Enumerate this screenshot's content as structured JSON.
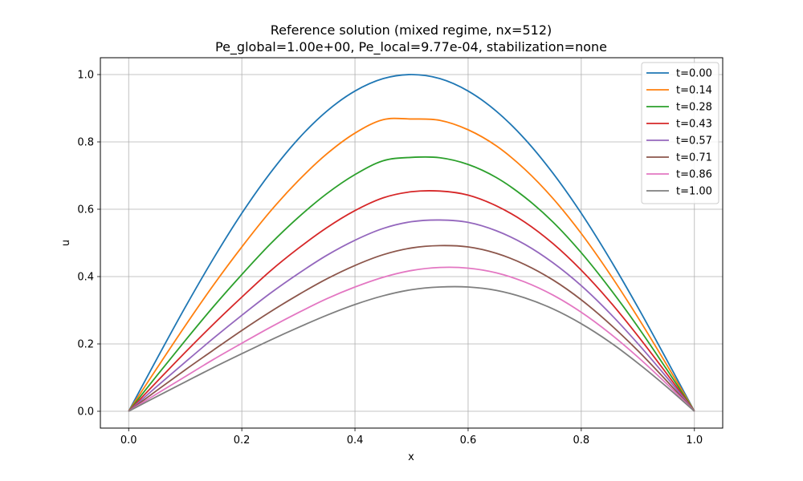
{
  "chart_data": {
    "type": "line",
    "title": "Reference solution (mixed regime, nx=512)",
    "subtitle": "Pe_global=1.00e+00, Pe_local=9.77e-04, stabilization=none",
    "xlabel": "x",
    "ylabel": "u",
    "xlim": [
      -0.05,
      1.05
    ],
    "ylim": [
      -0.05,
      1.05
    ],
    "xticks": [
      0.0,
      0.2,
      0.4,
      0.6,
      0.8,
      1.0
    ],
    "xtick_labels": [
      "0.0",
      "0.2",
      "0.4",
      "0.6",
      "0.8",
      "1.0"
    ],
    "yticks": [
      0.0,
      0.2,
      0.4,
      0.6,
      0.8,
      1.0
    ],
    "ytick_labels": [
      "0.0",
      "0.2",
      "0.4",
      "0.6",
      "0.8",
      "1.0"
    ],
    "grid": true,
    "legend_position": "top-right",
    "x": [
      0.0,
      0.05,
      0.1,
      0.15,
      0.2,
      0.25,
      0.3,
      0.35,
      0.4,
      0.45,
      0.5,
      0.55,
      0.6,
      0.65,
      0.7,
      0.75,
      0.8,
      0.85,
      0.9,
      0.95,
      1.0
    ],
    "series": [
      {
        "name": "t=0.00",
        "color": "#1f77b4",
        "values": [
          0.0,
          0.156,
          0.309,
          0.454,
          0.588,
          0.707,
          0.809,
          0.891,
          0.951,
          0.988,
          1.0,
          0.988,
          0.951,
          0.891,
          0.809,
          0.707,
          0.588,
          0.454,
          0.309,
          0.156,
          0.0
        ]
      },
      {
        "name": "t=0.14",
        "color": "#ff7f0e",
        "values": [
          0.0,
          0.128,
          0.254,
          0.375,
          0.488,
          0.593,
          0.685,
          0.764,
          0.826,
          0.866,
          0.868,
          0.864,
          0.836,
          0.788,
          0.719,
          0.632,
          0.528,
          0.409,
          0.279,
          0.141,
          0.0
        ]
      },
      {
        "name": "t=0.28",
        "color": "#2ca02c",
        "values": [
          0.0,
          0.106,
          0.21,
          0.311,
          0.406,
          0.496,
          0.576,
          0.646,
          0.703,
          0.744,
          0.754,
          0.753,
          0.733,
          0.694,
          0.636,
          0.562,
          0.471,
          0.366,
          0.251,
          0.127,
          0.0
        ]
      },
      {
        "name": "t=0.43",
        "color": "#d62728",
        "values": [
          0.0,
          0.088,
          0.175,
          0.259,
          0.339,
          0.416,
          0.484,
          0.545,
          0.596,
          0.634,
          0.652,
          0.654,
          0.642,
          0.61,
          0.562,
          0.498,
          0.419,
          0.327,
          0.224,
          0.114,
          0.0
        ]
      },
      {
        "name": "t=0.57",
        "color": "#9467bd",
        "values": [
          0.0,
          0.074,
          0.146,
          0.217,
          0.285,
          0.35,
          0.409,
          0.463,
          0.508,
          0.543,
          0.563,
          0.568,
          0.561,
          0.536,
          0.496,
          0.441,
          0.373,
          0.292,
          0.201,
          0.103,
          0.0
        ]
      },
      {
        "name": "t=0.71",
        "color": "#8c564b",
        "values": [
          0.0,
          0.062,
          0.123,
          0.182,
          0.24,
          0.295,
          0.346,
          0.393,
          0.433,
          0.465,
          0.485,
          0.492,
          0.488,
          0.469,
          0.436,
          0.39,
          0.331,
          0.26,
          0.18,
          0.092,
          0.0
        ]
      },
      {
        "name": "t=0.86",
        "color": "#e377c2",
        "values": [
          0.0,
          0.052,
          0.103,
          0.154,
          0.202,
          0.249,
          0.293,
          0.334,
          0.369,
          0.398,
          0.418,
          0.427,
          0.425,
          0.411,
          0.384,
          0.345,
          0.294,
          0.232,
          0.161,
          0.083,
          0.0
        ]
      },
      {
        "name": "t=1.00",
        "color": "#7f7f7f",
        "values": [
          0.0,
          0.044,
          0.087,
          0.13,
          0.171,
          0.211,
          0.249,
          0.285,
          0.317,
          0.343,
          0.361,
          0.369,
          0.369,
          0.359,
          0.337,
          0.304,
          0.26,
          0.206,
          0.143,
          0.074,
          0.0
        ]
      }
    ]
  }
}
